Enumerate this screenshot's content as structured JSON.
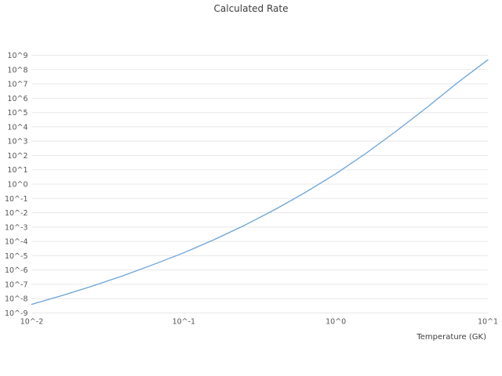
{
  "chart_data": {
    "type": "line",
    "title": "Calculated Rate",
    "xlabel": "Temperature (GK)",
    "ylabel": "",
    "x_scale": "log10",
    "y_scale": "log10",
    "xlim_log10": [
      -2,
      1
    ],
    "ylim_log10": [
      -9,
      9
    ],
    "grid": "horizontal",
    "legend": "none",
    "x_ticks_log10": [
      -2,
      -1,
      0,
      1
    ],
    "x_tick_labels": [
      "10^-2",
      "10^-1",
      "10^0",
      "10^1"
    ],
    "y_ticks_log10": [
      9,
      8,
      7,
      6,
      5,
      4,
      3,
      2,
      1,
      0,
      -1,
      -2,
      -3,
      -4,
      -5,
      -6,
      -7,
      -8,
      -9
    ],
    "y_tick_labels": [
      "10^9",
      "10^8",
      "10^7",
      "10^6",
      "10^5",
      "10^4",
      "10^3",
      "10^2",
      "10^1",
      "10^0",
      "10^-1",
      "10^-2",
      "10^-3",
      "10^-4",
      "10^-5",
      "10^-6",
      "10^-7",
      "10^-8",
      "10^-9"
    ],
    "series": [
      {
        "name": "Calculated Rate",
        "x_log10": [
          -2.0,
          -1.8,
          -1.6,
          -1.4,
          -1.2,
          -1.0,
          -0.8,
          -0.6,
          -0.4,
          -0.2,
          0.0,
          0.2,
          0.4,
          0.6,
          0.8,
          1.0
        ],
        "y_log10": [
          -8.4,
          -7.78,
          -7.12,
          -6.4,
          -5.62,
          -4.8,
          -3.88,
          -2.88,
          -1.78,
          -0.58,
          0.72,
          2.16,
          3.72,
          5.36,
          7.08,
          8.68
        ]
      }
    ]
  },
  "colors": {
    "line": "#6ba3d9",
    "grid": "#e8e8e8",
    "tick_text": "#555555",
    "title_text": "#3d3d3d"
  }
}
